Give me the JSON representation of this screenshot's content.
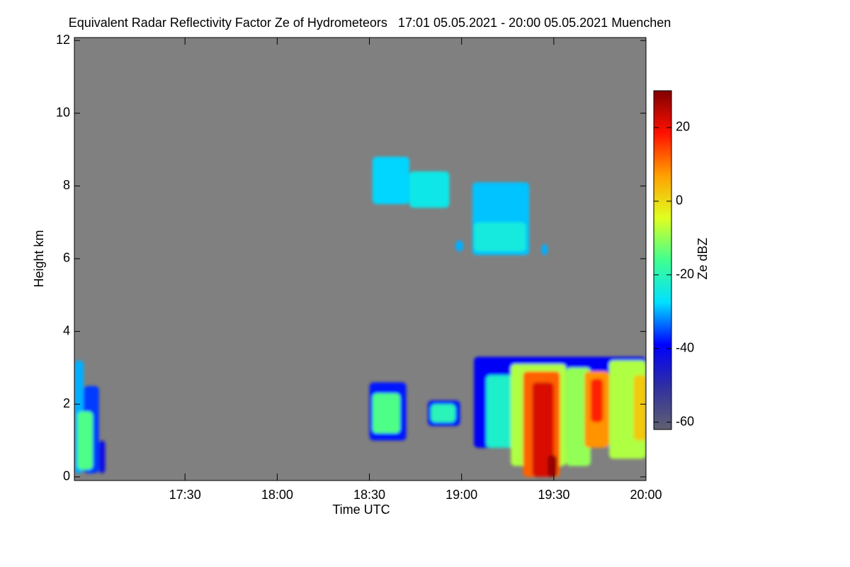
{
  "chart_data": {
    "type": "heatmap",
    "title": "Equivalent Radar Reflectivity Factor Ze of Hydrometeors   17:01 05.05.2021 - 20:00 05.05.2021 Muenchen",
    "x_label": "Time UTC",
    "y_label": "Height km",
    "colorbar_label": "Ze dBZ",
    "background": "#808080",
    "xlim": [
      1014,
      1200
    ],
    "xticks": [
      {
        "value": 1050,
        "label": "17:30"
      },
      {
        "value": 1080,
        "label": "18:00"
      },
      {
        "value": 1110,
        "label": "18:30"
      },
      {
        "value": 1140,
        "label": "19:00"
      },
      {
        "value": 1170,
        "label": "19:30"
      },
      {
        "value": 1200,
        "label": "20:00"
      }
    ],
    "ylim": [
      -0.1,
      12.08
    ],
    "yticks": [
      0,
      2,
      4,
      6,
      8,
      10,
      12
    ],
    "clim": [
      -62,
      30
    ],
    "cticks": [
      -60,
      -40,
      -20,
      0,
      20
    ],
    "colorscale": [
      "#606070",
      "#3030a0",
      "#0000ff",
      "#00e0ff",
      "#40ff90",
      "#e0ff20",
      "#ffa000",
      "#ff1000",
      "#800000"
    ],
    "cells": [
      {
        "t": [
          1014,
          1017
        ],
        "h": [
          0.1,
          3.2
        ],
        "dbz": -30
      },
      {
        "t": [
          1017,
          1022
        ],
        "h": [
          0.1,
          2.5
        ],
        "dbz": -36
      },
      {
        "t": [
          1015,
          1020
        ],
        "h": [
          0.2,
          1.8
        ],
        "dbz": -15
      },
      {
        "t": [
          1022,
          1024
        ],
        "h": [
          0.1,
          1.0
        ],
        "dbz": -42
      },
      {
        "t": [
          1111,
          1123
        ],
        "h": [
          7.5,
          8.8
        ],
        "dbz": -28
      },
      {
        "t": [
          1123,
          1136
        ],
        "h": [
          7.4,
          8.4
        ],
        "dbz": -25
      },
      {
        "t": [
          1143.5,
          1162
        ],
        "h": [
          6.1,
          8.1
        ],
        "dbz": -29
      },
      {
        "t": [
          1144,
          1161
        ],
        "h": [
          6.2,
          7.0
        ],
        "dbz": -24
      },
      {
        "t": [
          1138,
          1140.5
        ],
        "h": [
          6.2,
          6.5
        ],
        "dbz": -30
      },
      {
        "t": [
          1166,
          1168
        ],
        "h": [
          6.1,
          6.4
        ],
        "dbz": -30
      },
      {
        "t": [
          1110,
          1122
        ],
        "h": [
          1.0,
          2.6
        ],
        "dbz": -38
      },
      {
        "t": [
          1111,
          1120
        ],
        "h": [
          1.2,
          2.3
        ],
        "dbz": -15
      },
      {
        "t": [
          1129,
          1139.5
        ],
        "h": [
          1.4,
          2.1
        ],
        "dbz": -38
      },
      {
        "t": [
          1130,
          1138
        ],
        "h": [
          1.5,
          2.0
        ],
        "dbz": -20
      },
      {
        "t": [
          1144,
          1200
        ],
        "h": [
          0.8,
          3.3
        ],
        "dbz": -40
      },
      {
        "t": [
          1148,
          1160
        ],
        "h": [
          0.8,
          2.8
        ],
        "dbz": -22
      },
      {
        "t": [
          1156,
          1174
        ],
        "h": [
          0.3,
          3.1
        ],
        "dbz": -8
      },
      {
        "t": [
          1160,
          1172
        ],
        "h": [
          0.0,
          2.9
        ],
        "dbz": 12
      },
      {
        "t": [
          1163,
          1170
        ],
        "h": [
          0.0,
          2.6
        ],
        "dbz": 22
      },
      {
        "t": [
          1168,
          1171
        ],
        "h": [
          0.0,
          0.6
        ],
        "dbz": 28
      },
      {
        "t": [
          1174,
          1182
        ],
        "h": [
          0.3,
          3.0
        ],
        "dbz": -10
      },
      {
        "t": [
          1180,
          1188
        ],
        "h": [
          0.8,
          2.9
        ],
        "dbz": 8
      },
      {
        "t": [
          1182,
          1186
        ],
        "h": [
          1.5,
          2.7
        ],
        "dbz": 17
      },
      {
        "t": [
          1188,
          1200
        ],
        "h": [
          0.5,
          3.2
        ],
        "dbz": -8
      },
      {
        "t": [
          1196,
          1200
        ],
        "h": [
          1.0,
          2.8
        ],
        "dbz": 2
      }
    ]
  }
}
